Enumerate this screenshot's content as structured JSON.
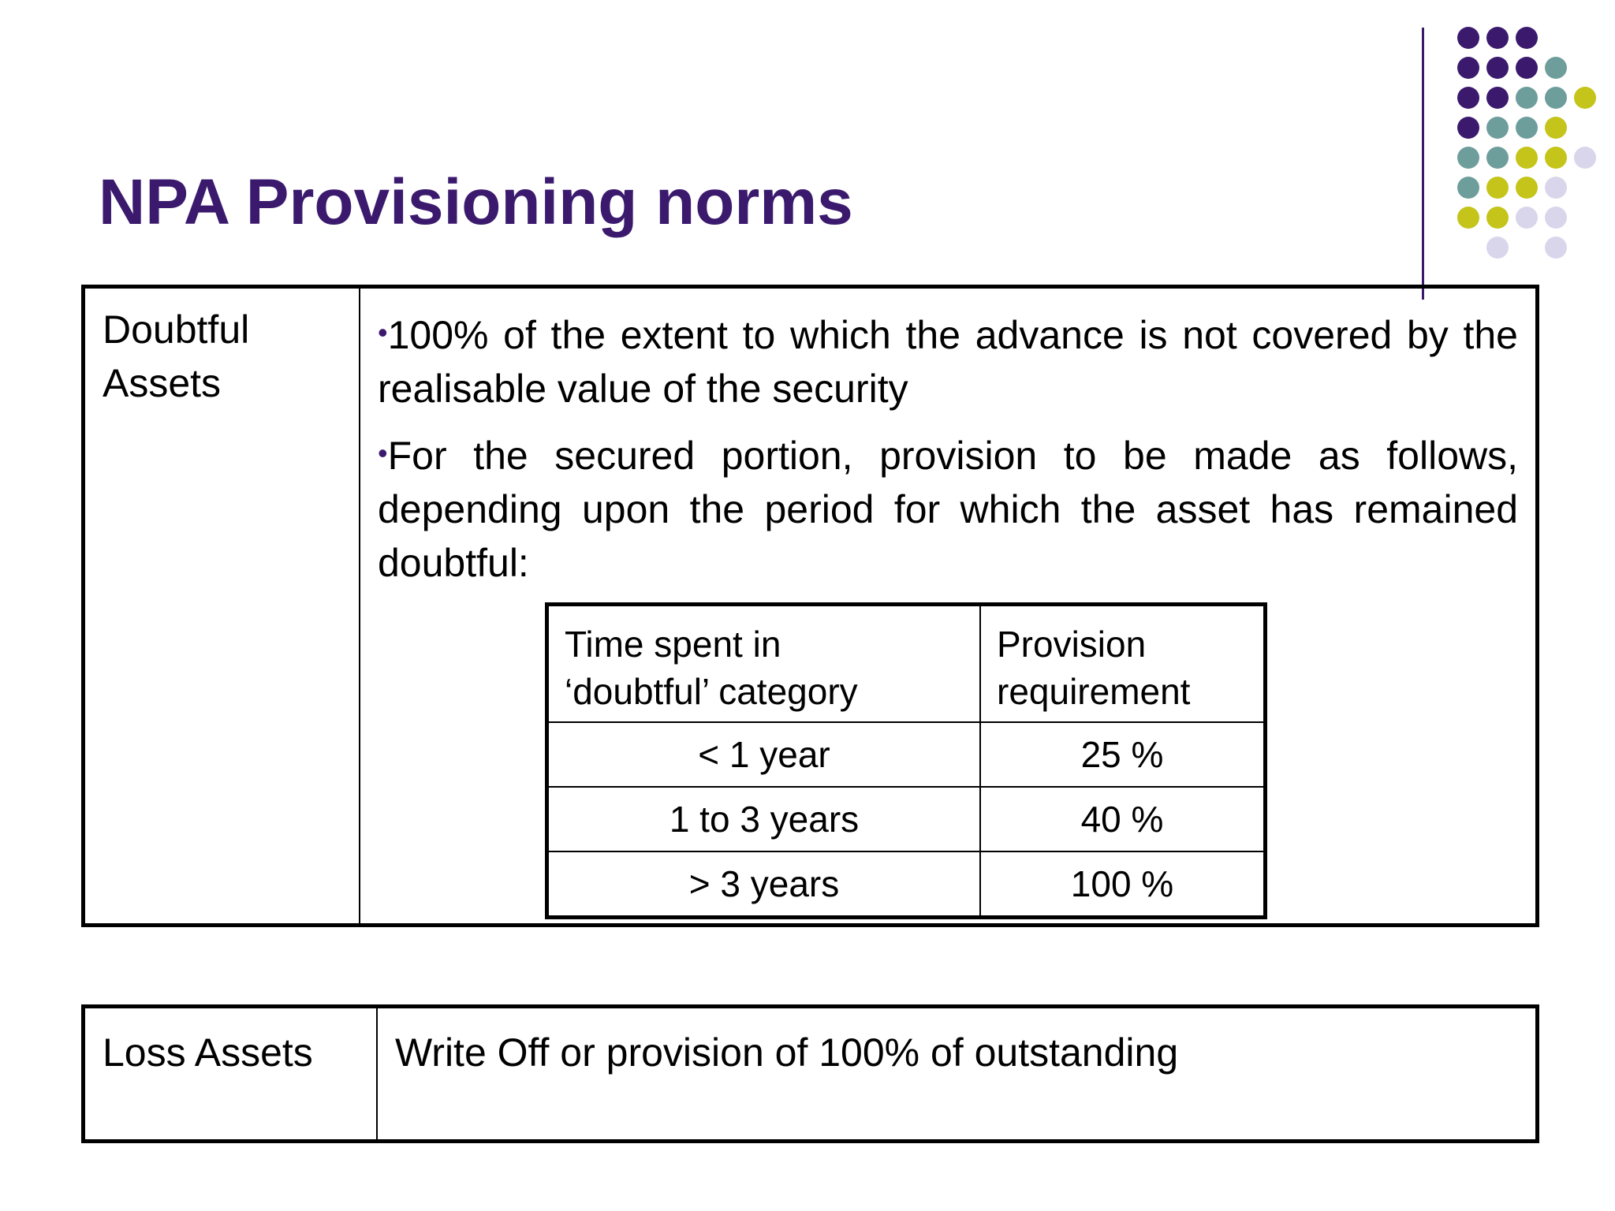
{
  "slide": {
    "title": "NPA Provisioning norms",
    "accent_color": "#3b1a6e",
    "decoration": {
      "type": "dot-grid",
      "colors": [
        "#3b1a6e",
        "#6e9e9b",
        "#c4c41a",
        "#d9d6ec"
      ]
    }
  },
  "doubtful": {
    "label": "Doubtful\nAssets",
    "bullets": [
      "100% of the extent to which the advance is not covered by the realisable value of the security",
      "For the secured portion, provision to be made as follows, depending upon the period for which the asset has remained doubtful:"
    ],
    "table": {
      "headers": [
        "Time spent in\n‘doubtful’ category",
        "Provision\nrequirement"
      ],
      "rows": [
        [
          "< 1 year",
          "25 %"
        ],
        [
          "1 to 3 years",
          "40 %"
        ],
        [
          "> 3 years",
          "100 %"
        ]
      ]
    }
  },
  "loss": {
    "label": "Loss Assets",
    "text": "Write Off or provision of 100% of outstanding"
  }
}
